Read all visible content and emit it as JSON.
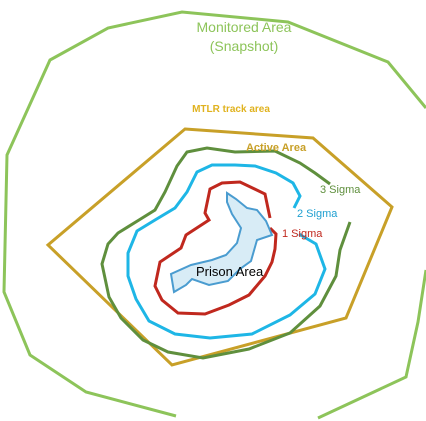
{
  "labels": {
    "monitored_line1": "Monitored Area",
    "monitored_line2": "(Snapshot)",
    "mtlr": "MTLR track area",
    "active": "Active Area",
    "sigma3": "3 Sigma",
    "sigma2": "2 Sigma",
    "sigma1": "1 Sigma",
    "prison": "Prison Area"
  },
  "colors": {
    "monitored": "#8dc45a",
    "active": "#c8a028",
    "mtlr_text": "#e0b21e",
    "sigma3": "#5f8f3d",
    "sigma2": "#1eb6e6",
    "sigma1": "#c0281e",
    "prison_fill": "#d8ecf6",
    "prison_stroke": "#4a9cd0",
    "text_dark": "#000000"
  }
}
